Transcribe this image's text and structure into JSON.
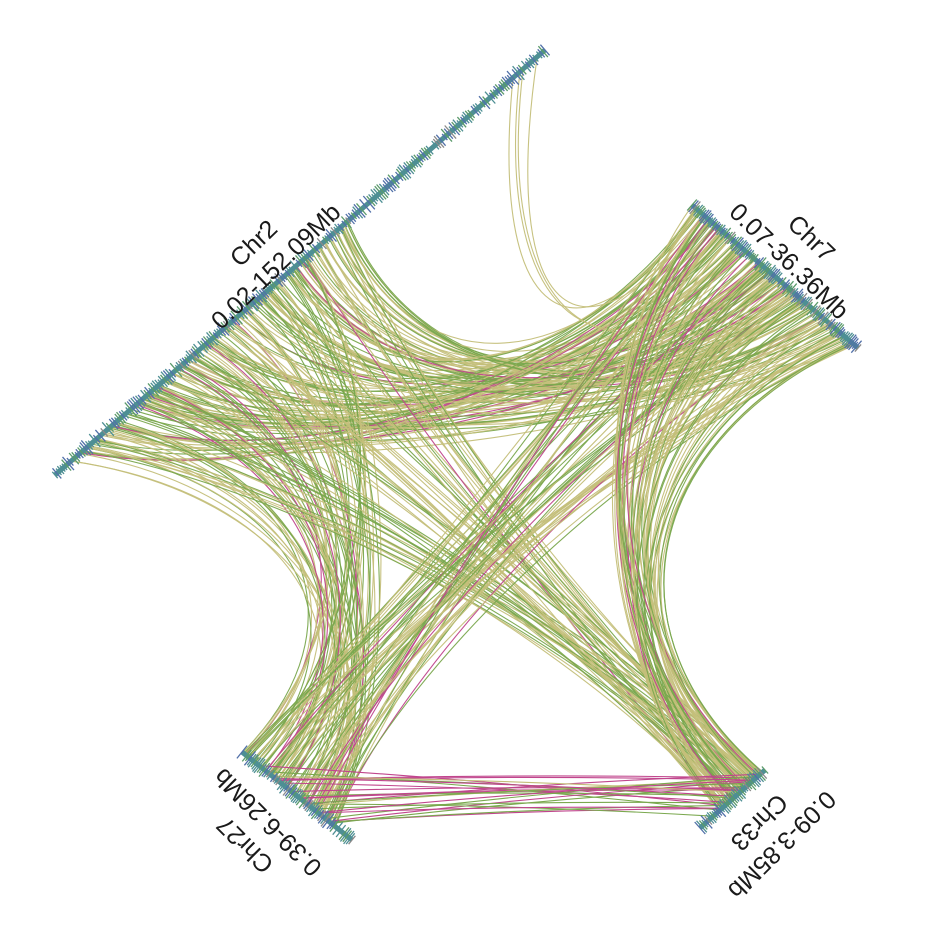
{
  "colors": {
    "link_khaki": "#c4bf7a",
    "link_green": "#7aa84e",
    "link_magenta": "#c0468d",
    "tick_blue": "#5170a8",
    "tick_green": "#5a9a6a",
    "tick_teal": "#4e8f94",
    "tick_gray": "#8a8a8a"
  },
  "chromosomes": [
    {
      "id": "chr2",
      "name": "Chr2",
      "range": "0.02-152.09Mb"
    },
    {
      "id": "chr7",
      "name": "Chr7",
      "range": "0.07-36.36Mb"
    },
    {
      "id": "chr27",
      "name": "Chr27",
      "range": "0.39-6.26Mb"
    },
    {
      "id": "chr33",
      "name": "Chr33",
      "range": "0.09-3.85Mb"
    }
  ]
}
